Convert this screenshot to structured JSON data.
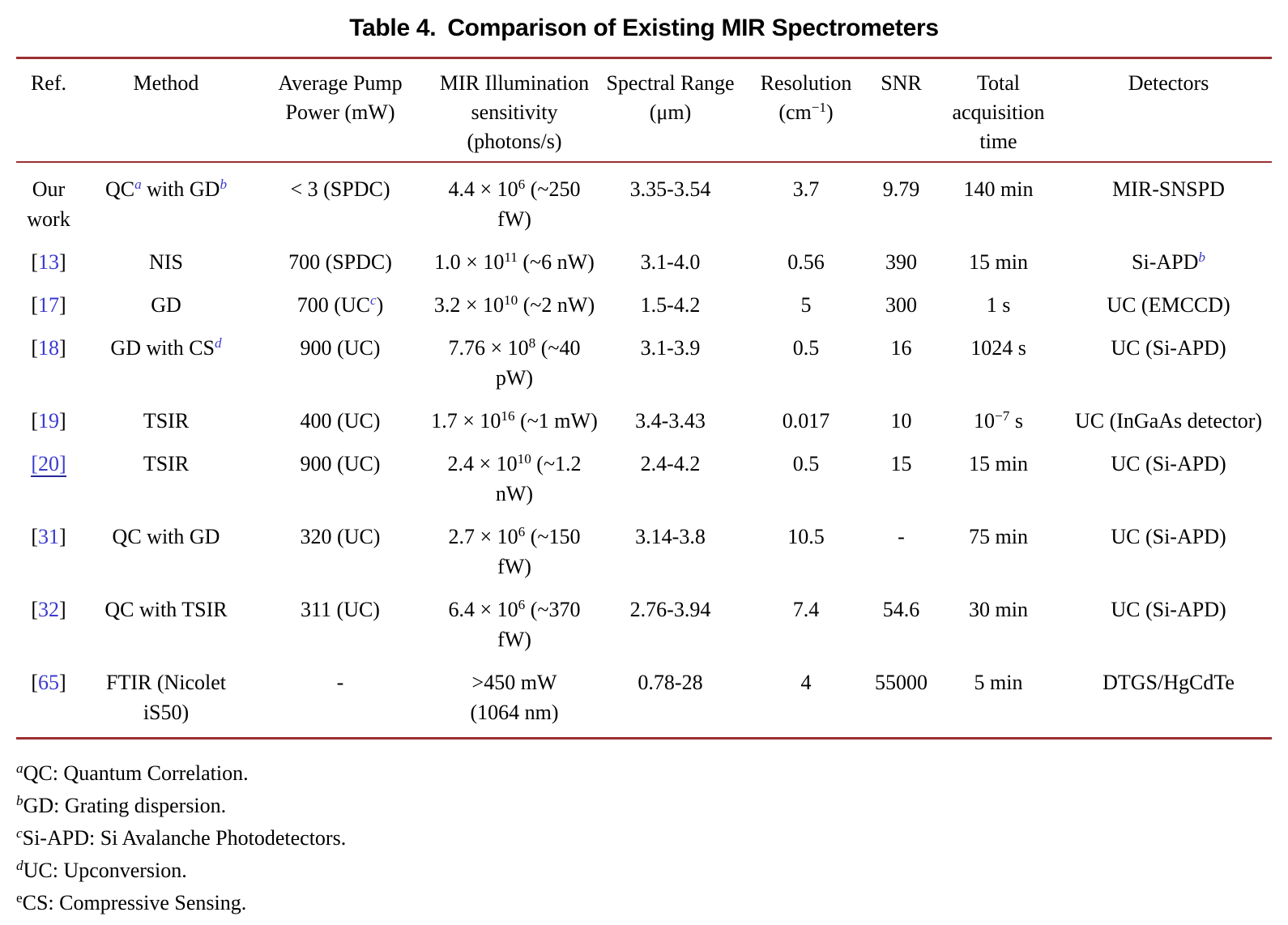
{
  "caption": {
    "label": "Table 4.",
    "text": "Comparison of Existing MIR Spectrometers"
  },
  "colors": {
    "rule": "#9c2f33",
    "link_blue": "#3a3ad0",
    "underline_blue": "#26269b",
    "text": "#000000"
  },
  "columns": [
    {
      "key": "ref",
      "segments": [
        {
          "t": "Ref."
        }
      ]
    },
    {
      "key": "method",
      "segments": [
        {
          "t": "Method"
        }
      ]
    },
    {
      "key": "pump-power",
      "segments": [
        {
          "t": "Average Pump\nPower (mW)"
        }
      ]
    },
    {
      "key": "sensitivity",
      "segments": [
        {
          "t": "MIR Illumination\nsensitivity\n(photons/s)"
        }
      ]
    },
    {
      "key": "spectral-range",
      "segments": [
        {
          "t": "Spectral Range\n(μm)"
        }
      ]
    },
    {
      "key": "resolution",
      "segments": [
        {
          "t": "Resolution\n(cm"
        },
        {
          "t": "−1",
          "s": "sup"
        },
        {
          "t": ")"
        }
      ]
    },
    {
      "key": "snr",
      "segments": [
        {
          "t": "SNR"
        }
      ]
    },
    {
      "key": "acquisition-time",
      "segments": [
        {
          "t": "Total\nacquisition\ntime"
        }
      ]
    },
    {
      "key": "detectors",
      "segments": [
        {
          "t": "Detectors"
        }
      ]
    }
  ],
  "rows": [
    [
      [
        {
          "t": "Our\nwork"
        }
      ],
      [
        {
          "t": "QC"
        },
        {
          "t": "a",
          "s": "sup link it"
        },
        {
          "t": " with GD"
        },
        {
          "t": "b",
          "s": "sup link it"
        }
      ],
      [
        {
          "t": "< 3 (SPDC)"
        }
      ],
      [
        {
          "t": "4.4 × 10"
        },
        {
          "t": "6",
          "s": "sup"
        },
        {
          "t": " (~250\nfW)"
        }
      ],
      [
        {
          "t": "3.35-3.54"
        }
      ],
      [
        {
          "t": "3.7"
        }
      ],
      [
        {
          "t": "9.79"
        }
      ],
      [
        {
          "t": "140 min"
        }
      ],
      [
        {
          "t": "MIR-SNSPD"
        }
      ]
    ],
    [
      [
        {
          "t": "["
        },
        {
          "t": "13",
          "s": "link"
        },
        {
          "t": "]"
        }
      ],
      [
        {
          "t": "NIS"
        }
      ],
      [
        {
          "t": "700 (SPDC)"
        }
      ],
      [
        {
          "t": "1.0 × 10"
        },
        {
          "t": "11",
          "s": "sup"
        },
        {
          "t": " (~6 nW)"
        }
      ],
      [
        {
          "t": "3.1-4.0"
        }
      ],
      [
        {
          "t": "0.56"
        }
      ],
      [
        {
          "t": "390"
        }
      ],
      [
        {
          "t": "15 min"
        }
      ],
      [
        {
          "t": "Si-APD"
        },
        {
          "t": "b",
          "s": "sup link it"
        }
      ]
    ],
    [
      [
        {
          "t": "["
        },
        {
          "t": "17",
          "s": "link"
        },
        {
          "t": "]"
        }
      ],
      [
        {
          "t": "GD"
        }
      ],
      [
        {
          "t": "700 (UC"
        },
        {
          "t": "c",
          "s": "sup link it"
        },
        {
          "t": ")"
        }
      ],
      [
        {
          "t": "3.2 × 10"
        },
        {
          "t": "10",
          "s": "sup"
        },
        {
          "t": " (~2 nW)"
        }
      ],
      [
        {
          "t": "1.5-4.2"
        }
      ],
      [
        {
          "t": "5"
        }
      ],
      [
        {
          "t": "300"
        }
      ],
      [
        {
          "t": "1 s"
        }
      ],
      [
        {
          "t": "UC (EMCCD)"
        }
      ]
    ],
    [
      [
        {
          "t": "["
        },
        {
          "t": "18",
          "s": "link"
        },
        {
          "t": "]"
        }
      ],
      [
        {
          "t": "GD with CS"
        },
        {
          "t": "d",
          "s": "sup link it"
        }
      ],
      [
        {
          "t": "900 (UC)"
        }
      ],
      [
        {
          "t": "7.76 × 10"
        },
        {
          "t": "8",
          "s": "sup"
        },
        {
          "t": " (~40\npW)"
        }
      ],
      [
        {
          "t": "3.1-3.9"
        }
      ],
      [
        {
          "t": "0.5"
        }
      ],
      [
        {
          "t": "16"
        }
      ],
      [
        {
          "t": "1024 s"
        }
      ],
      [
        {
          "t": "UC (Si-APD)"
        }
      ]
    ],
    [
      [
        {
          "t": "["
        },
        {
          "t": "19",
          "s": "link"
        },
        {
          "t": "]"
        }
      ],
      [
        {
          "t": "TSIR"
        }
      ],
      [
        {
          "t": "400 (UC)"
        }
      ],
      [
        {
          "t": "1.7 × 10"
        },
        {
          "t": "16",
          "s": "sup"
        },
        {
          "t": " (~1 mW)"
        }
      ],
      [
        {
          "t": "3.4-3.43"
        }
      ],
      [
        {
          "t": "0.017"
        }
      ],
      [
        {
          "t": "10"
        }
      ],
      [
        {
          "t": "10"
        },
        {
          "t": "−7",
          "s": "sup"
        },
        {
          "t": " s"
        }
      ],
      [
        {
          "t": "UC (InGaAs detector)"
        }
      ]
    ],
    [
      [
        {
          "t": "[20]",
          "s": "link ul"
        }
      ],
      [
        {
          "t": "TSIR"
        }
      ],
      [
        {
          "t": "900 (UC)"
        }
      ],
      [
        {
          "t": "2.4 × 10"
        },
        {
          "t": "10",
          "s": "sup"
        },
        {
          "t": " (~1.2\nnW)"
        }
      ],
      [
        {
          "t": "2.4-4.2"
        }
      ],
      [
        {
          "t": "0.5"
        }
      ],
      [
        {
          "t": "15"
        }
      ],
      [
        {
          "t": "15 min"
        }
      ],
      [
        {
          "t": "UC (Si-APD)"
        }
      ]
    ],
    [
      [
        {
          "t": "["
        },
        {
          "t": "31",
          "s": "link"
        },
        {
          "t": "]"
        }
      ],
      [
        {
          "t": "QC with GD"
        }
      ],
      [
        {
          "t": "320 (UC)"
        }
      ],
      [
        {
          "t": "2.7 × 10"
        },
        {
          "t": "6",
          "s": "sup"
        },
        {
          "t": " (~150\nfW)"
        }
      ],
      [
        {
          "t": "3.14-3.8"
        }
      ],
      [
        {
          "t": "10.5"
        }
      ],
      [
        {
          "t": "-"
        }
      ],
      [
        {
          "t": "75 min"
        }
      ],
      [
        {
          "t": "UC (Si-APD)"
        }
      ]
    ],
    [
      [
        {
          "t": "["
        },
        {
          "t": "32",
          "s": "link"
        },
        {
          "t": "]"
        }
      ],
      [
        {
          "t": "QC with TSIR"
        }
      ],
      [
        {
          "t": "311 (UC)"
        }
      ],
      [
        {
          "t": "6.4 × 10"
        },
        {
          "t": "6",
          "s": "sup"
        },
        {
          "t": " (~370\nfW)"
        }
      ],
      [
        {
          "t": "2.76-3.94"
        }
      ],
      [
        {
          "t": "7.4"
        }
      ],
      [
        {
          "t": "54.6"
        }
      ],
      [
        {
          "t": "30 min"
        }
      ],
      [
        {
          "t": "UC (Si-APD)"
        }
      ]
    ],
    [
      [
        {
          "t": "["
        },
        {
          "t": "65",
          "s": "link"
        },
        {
          "t": "]"
        }
      ],
      [
        {
          "t": "FTIR (Nicolet\niS50)"
        }
      ],
      [
        {
          "t": "-"
        }
      ],
      [
        {
          "t": ">450 mW\n(1064 nm)"
        }
      ],
      [
        {
          "t": "0.78-28"
        }
      ],
      [
        {
          "t": "4"
        }
      ],
      [
        {
          "t": "55000"
        }
      ],
      [
        {
          "t": "5 min"
        }
      ],
      [
        {
          "t": "DTGS/HgCdTe"
        }
      ]
    ]
  ],
  "footnotes": [
    [
      {
        "t": "a",
        "s": "sup it"
      },
      {
        "t": "QC: Quantum Correlation."
      }
    ],
    [
      {
        "t": "b",
        "s": "sup it"
      },
      {
        "t": "GD: Grating dispersion."
      }
    ],
    [
      {
        "t": "c",
        "s": "sup it"
      },
      {
        "t": "Si-APD: Si Avalanche Photodetectors."
      }
    ],
    [
      {
        "t": "d",
        "s": "sup it"
      },
      {
        "t": "UC: Upconversion."
      }
    ],
    [
      {
        "t": "e",
        "s": "sup"
      },
      {
        "t": "CS: Compressive Sensing."
      }
    ]
  ]
}
